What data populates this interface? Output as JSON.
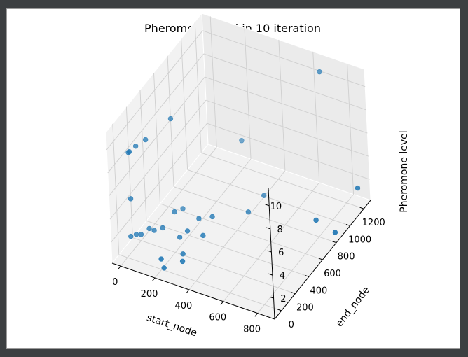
{
  "chart_data": {
    "type": "scatter",
    "projection": "3d",
    "title": "Pheromone level in 10 iteration",
    "xlabel": "start_node",
    "ylabel": "end_node",
    "zlabel": "Pheromone level",
    "xlim": [
      -50,
      900
    ],
    "ylim": [
      -100,
      1300
    ],
    "zlim": [
      0.2,
      11.5
    ],
    "x_ticks": [
      0,
      200,
      400,
      600,
      800
    ],
    "y_ticks": [
      0,
      200,
      400,
      600,
      800,
      1000,
      1200
    ],
    "z_ticks": [
      2,
      4,
      6,
      8,
      10
    ],
    "marker_color": "#1f77b4",
    "grid": true,
    "points": [
      {
        "x": 0,
        "y": 80,
        "z": 8.7
      },
      {
        "x": 0,
        "y": 95,
        "z": 8.65
      },
      {
        "x": 20,
        "y": 140,
        "z": 8.9
      },
      {
        "x": 50,
        "y": 210,
        "z": 9.1
      },
      {
        "x": 110,
        "y": 430,
        "z": 9.6
      },
      {
        "x": 10,
        "y": 60,
        "z": 4.9
      },
      {
        "x": 0,
        "y": 60,
        "z": 1.6
      },
      {
        "x": 20,
        "y": 90,
        "z": 1.65
      },
      {
        "x": 40,
        "y": 110,
        "z": 1.6
      },
      {
        "x": 60,
        "y": 180,
        "z": 1.7
      },
      {
        "x": 80,
        "y": 200,
        "z": 1.5
      },
      {
        "x": 110,
        "y": 250,
        "z": 1.5
      },
      {
        "x": 150,
        "y": 330,
        "z": 2.5
      },
      {
        "x": 140,
        "y": 470,
        "z": 1.7
      },
      {
        "x": 200,
        "y": 270,
        "z": 1.0
      },
      {
        "x": 230,
        "y": 310,
        "z": 1.4
      },
      {
        "x": 250,
        "y": 430,
        "z": 1.7
      },
      {
        "x": 240,
        "y": 210,
        "z": 0.2
      },
      {
        "x": 270,
        "y": 130,
        "z": 0.3
      },
      {
        "x": 300,
        "y": 500,
        "z": 1.6
      },
      {
        "x": 300,
        "y": 360,
        "z": 1.0
      },
      {
        "x": 210,
        "y": 10,
        "z": 0.3
      },
      {
        "x": 200,
        "y": 0,
        "z": 1.1
      },
      {
        "x": 280,
        "y": 1000,
        "z": 4.4
      },
      {
        "x": 440,
        "y": 900,
        "z": 1.2
      },
      {
        "x": 420,
        "y": 720,
        "z": 1.0
      },
      {
        "x": 650,
        "y": 1260,
        "z": 10.3
      },
      {
        "x": 760,
        "y": 860,
        "z": 1.0
      },
      {
        "x": 870,
        "y": 860,
        "z": 0.5
      },
      {
        "x": 900,
        "y": 1130,
        "z": 2.5
      }
    ]
  }
}
